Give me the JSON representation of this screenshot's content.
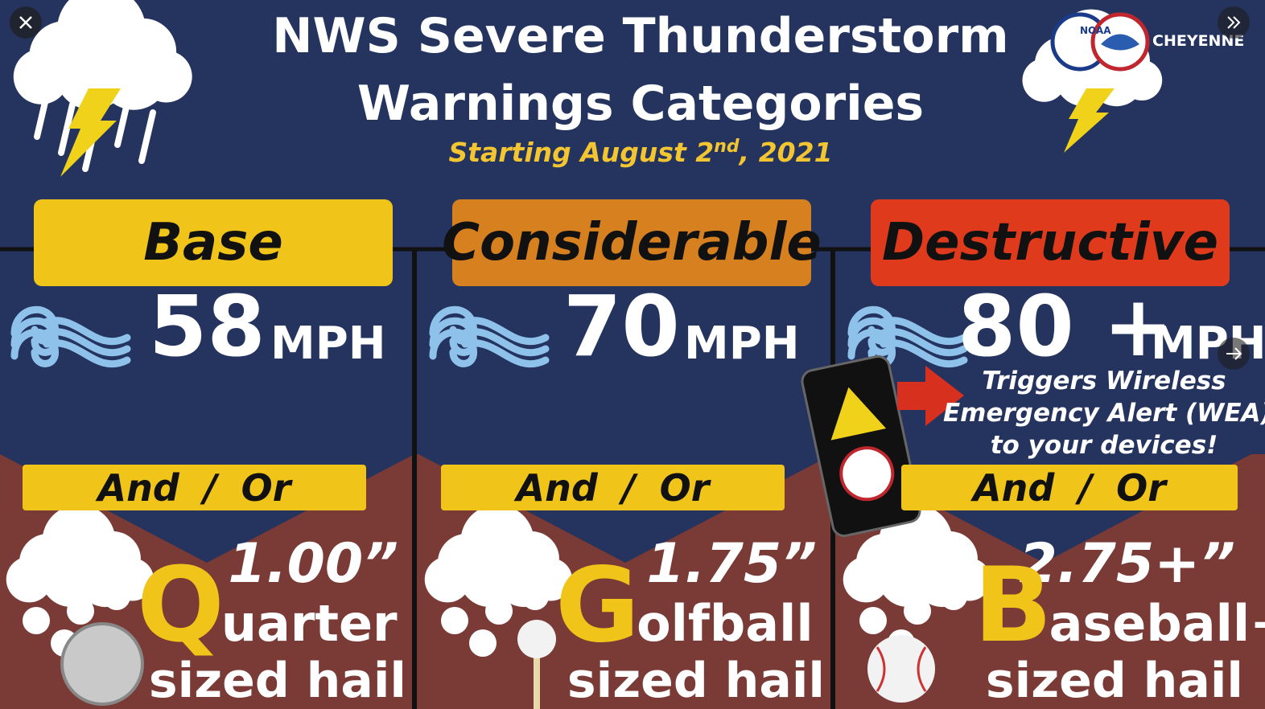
{
  "header": {
    "title_lines": [
      "NWS Severe Thunderstorm",
      "Warnings Categories"
    ],
    "subtitle": {
      "start": "Starting August 2",
      "sup": "nd",
      "end": ", 2021"
    },
    "logo": {
      "noaa": "NOAA",
      "office": "CHEYENNE"
    }
  },
  "categories": [
    {
      "label": "Base",
      "wind": "58",
      "wind_unit": "MPH",
      "conjunction": "And / Or",
      "hail_size": "1.00”",
      "hail_initial": "Q",
      "hail_object": "uarter",
      "hail_suffix": "sized hail"
    },
    {
      "label": "Considerable",
      "wind": "70",
      "wind_unit": "MPH",
      "conjunction": "And / Or",
      "hail_size": "1.75”",
      "hail_initial": "G",
      "hail_object": "olfball",
      "hail_suffix": "sized hail"
    },
    {
      "label": "Destructive",
      "wind": "80 +",
      "wind_unit": "MPH",
      "conjunction": "And / Or",
      "hail_size": "2.75+”",
      "hail_initial": "B",
      "hail_object": "aseball+",
      "hail_suffix": "sized hail"
    }
  ],
  "wea_note": {
    "lines": [
      "Triggers Wireless",
      "Emergency Alert (WEA)",
      "to your devices!"
    ]
  }
}
